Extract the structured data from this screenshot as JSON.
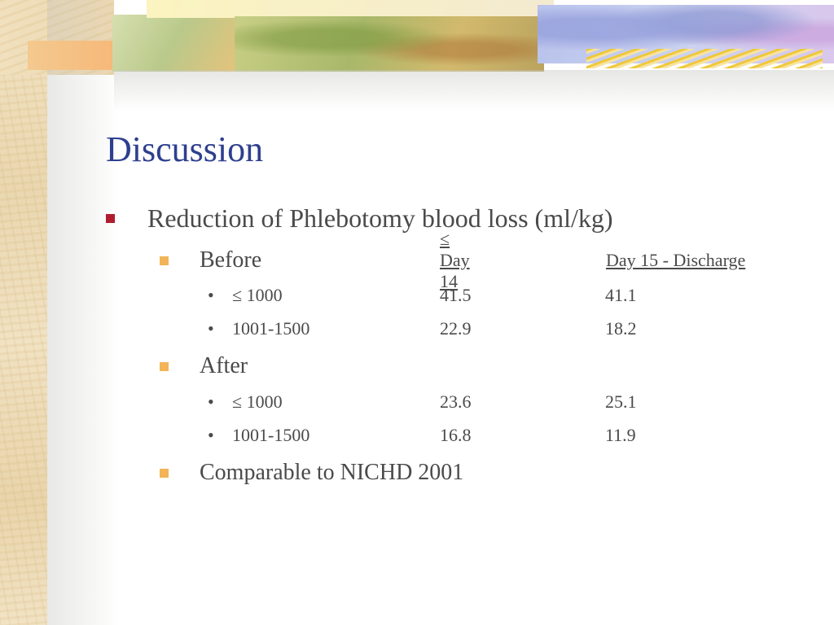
{
  "slide": {
    "title": "Discussion",
    "bullet": "Reduction of Phlebotomy blood loss (ml/kg)",
    "before": {
      "label": "Before",
      "col_day14": "≤ Day 14",
      "col_day15": "Day 15 - Discharge",
      "rows": [
        {
          "category": "≤ 1000",
          "day14": "41.5",
          "day15": "41.1"
        },
        {
          "category": "1001-1500",
          "day14": "22.9",
          "day15": "18.2"
        }
      ]
    },
    "after": {
      "label": "After",
      "rows": [
        {
          "category": "≤ 1000",
          "day14": "23.6",
          "day15": "25.1"
        },
        {
          "category": "1001-1500",
          "day14": "16.8",
          "day15": "11.9"
        }
      ]
    },
    "comparison": "Comparable to NICHD 2001",
    "bullet_glyph": "•"
  },
  "colors": {
    "title": "#2e3f8f",
    "text": "#4a4a4a",
    "bullet_l1": "#b01c2e",
    "bullet_l2": "#f3b457"
  }
}
